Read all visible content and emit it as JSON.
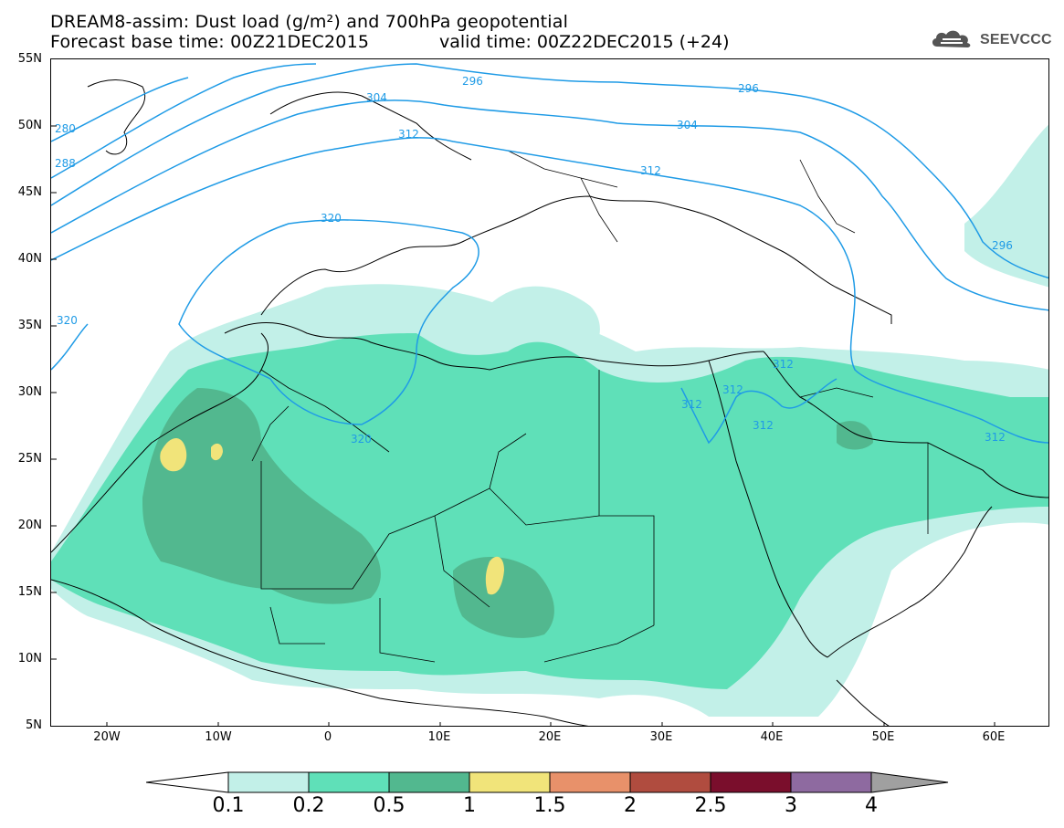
{
  "header": {
    "title_line1": "DREAM8-assim: Dust load (g/m²) and 700hPa geopotential",
    "title_line2": "Forecast base time: 00Z21DEC2015",
    "valid_time": "valid time: 00Z22DEC2015 (+24)"
  },
  "logo": {
    "text": "SEEVCCC",
    "icon": "cloud-logo-icon",
    "color": "#555555"
  },
  "map": {
    "lat_labels": [
      "55N",
      "50N",
      "45N",
      "40N",
      "35N",
      "30N",
      "25N",
      "20N",
      "15N",
      "10N",
      "5N"
    ],
    "lon_labels": [
      "20W",
      "10W",
      "0",
      "10E",
      "20E",
      "30E",
      "40E",
      "50E",
      "60E"
    ],
    "lat_range": [
      5,
      55
    ],
    "lon_range": [
      -25,
      65
    ],
    "contour_color": "#1f9be6",
    "contour_labels": [
      "280",
      "288",
      "296",
      "296",
      "296",
      "304",
      "304",
      "312",
      "312",
      "312",
      "312",
      "312",
      "312",
      "312",
      "320",
      "320",
      "320"
    ]
  },
  "colorbar": {
    "labels": [
      "0.1",
      "0.2",
      "0.5",
      "1",
      "1.5",
      "2",
      "2.5",
      "3",
      "4"
    ],
    "colors": [
      "#ffffff",
      "#c2f0e8",
      "#5fe0b8",
      "#52b88f",
      "#f1e47a",
      "#e8916a",
      "#b04c3f",
      "#7a0e2c",
      "#8e6aa0",
      "#a0a0a0"
    ]
  }
}
